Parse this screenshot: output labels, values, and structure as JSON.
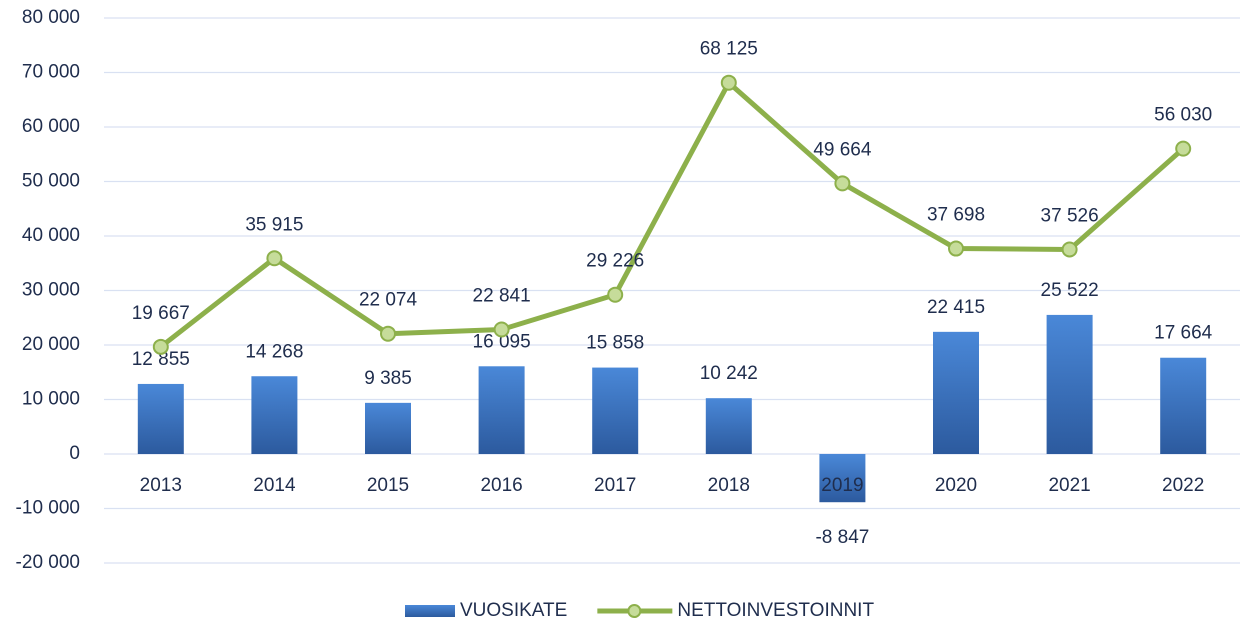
{
  "chart_data": {
    "type": "bar",
    "categories": [
      "2013",
      "2014",
      "2015",
      "2016",
      "2017",
      "2018",
      "2019",
      "2020",
      "2021",
      "2022"
    ],
    "series": [
      {
        "name": "VUOSIKATE",
        "type": "bar",
        "color": "#3b73c0",
        "values": [
          12855,
          14268,
          9385,
          16095,
          15858,
          10242,
          -8847,
          22415,
          25522,
          17664
        ],
        "value_labels": [
          "12 855",
          "14 268",
          "9 385",
          "16 095",
          "15 858",
          "10 242",
          "-8 847",
          "22 415",
          "25 522",
          "17 664"
        ]
      },
      {
        "name": "NETTOINVESTOINNIT",
        "type": "line",
        "color": "#8db04b",
        "values": [
          19667,
          35915,
          22074,
          22841,
          29226,
          68125,
          49664,
          37698,
          37526,
          56030
        ],
        "value_labels": [
          "19 667",
          "35 915",
          "22 074",
          "22 841",
          "29 226",
          "68 125",
          "49 664",
          "37 698",
          "37 526",
          "56 030"
        ]
      }
    ],
    "ylim": [
      -20000,
      80000
    ],
    "yticks": [
      {
        "value": -20000,
        "label": "-20 000"
      },
      {
        "value": -10000,
        "label": "-10 000"
      },
      0,
      {
        "value": 10000,
        "label": "10 000"
      },
      {
        "value": 20000,
        "label": "20 000"
      },
      {
        "value": 30000,
        "label": "30 000"
      },
      {
        "value": 40000,
        "label": "40 000"
      },
      {
        "value": 50000,
        "label": "50 000"
      },
      {
        "value": 60000,
        "label": "60 000"
      },
      {
        "value": 70000,
        "label": "70 000"
      },
      {
        "value": 80000,
        "label": "80 000"
      }
    ],
    "grid": true,
    "legend": "bottom"
  }
}
